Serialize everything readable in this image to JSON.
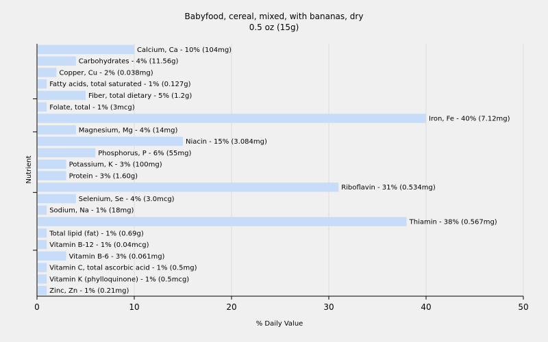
{
  "chart_data": {
    "type": "bar",
    "orientation": "horizontal",
    "title": "Babyfood, cereal, mixed, with bananas, dry",
    "subtitle": "0.5 oz (15g)",
    "xlabel": "% Daily Value",
    "ylabel": "Nutrient",
    "xlim": [
      0,
      50
    ],
    "xticks": [
      0,
      10,
      20,
      30,
      40,
      50
    ],
    "grid": true,
    "bar_color": "#c6dcf9",
    "categories": [
      "Calcium, Ca",
      "Carbohydrates",
      "Copper, Cu",
      "Fatty acids, total saturated",
      "Fiber, total dietary",
      "Folate, total",
      "Iron, Fe",
      "Magnesium, Mg",
      "Niacin",
      "Phosphorus, P",
      "Potassium, K",
      "Protein",
      "Riboflavin",
      "Selenium, Se",
      "Sodium, Na",
      "Thiamin",
      "Total lipid (fat)",
      "Vitamin B-12",
      "Vitamin B-6",
      "Vitamin C, total ascorbic acid",
      "Vitamin K (phylloquinone)",
      "Zinc, Zn"
    ],
    "values": [
      10,
      4,
      2,
      1,
      5,
      1,
      40,
      4,
      15,
      6,
      3,
      3,
      31,
      4,
      1,
      38,
      1,
      1,
      3,
      1,
      1,
      1
    ],
    "labels": [
      "Calcium, Ca - 10% (104mg)",
      "Carbohydrates - 4% (11.56g)",
      "Copper, Cu - 2% (0.038mg)",
      "Fatty acids, total saturated - 1% (0.127g)",
      "Fiber, total dietary - 5% (1.2g)",
      "Folate, total - 1% (3mcg)",
      "Iron, Fe - 40% (7.12mg)",
      "Magnesium, Mg - 4% (14mg)",
      "Niacin - 15% (3.084mg)",
      "Phosphorus, P - 6% (55mg)",
      "Potassium, K - 3% (100mg)",
      "Protein - 3% (1.60g)",
      "Riboflavin - 31% (0.534mg)",
      "Selenium, Se - 4% (3.0mcg)",
      "Sodium, Na - 1% (18mg)",
      "Thiamin - 38% (0.567mg)",
      "Total lipid (fat) - 1% (0.69g)",
      "Vitamin B-12 - 1% (0.04mcg)",
      "Vitamin B-6 - 3% (0.061mg)",
      "Vitamin C, total ascorbic acid - 1% (0.5mg)",
      "Vitamin K (phylloquinone) - 1% (0.5mcg)",
      "Zinc, Zn - 1% (0.21mg)"
    ]
  }
}
